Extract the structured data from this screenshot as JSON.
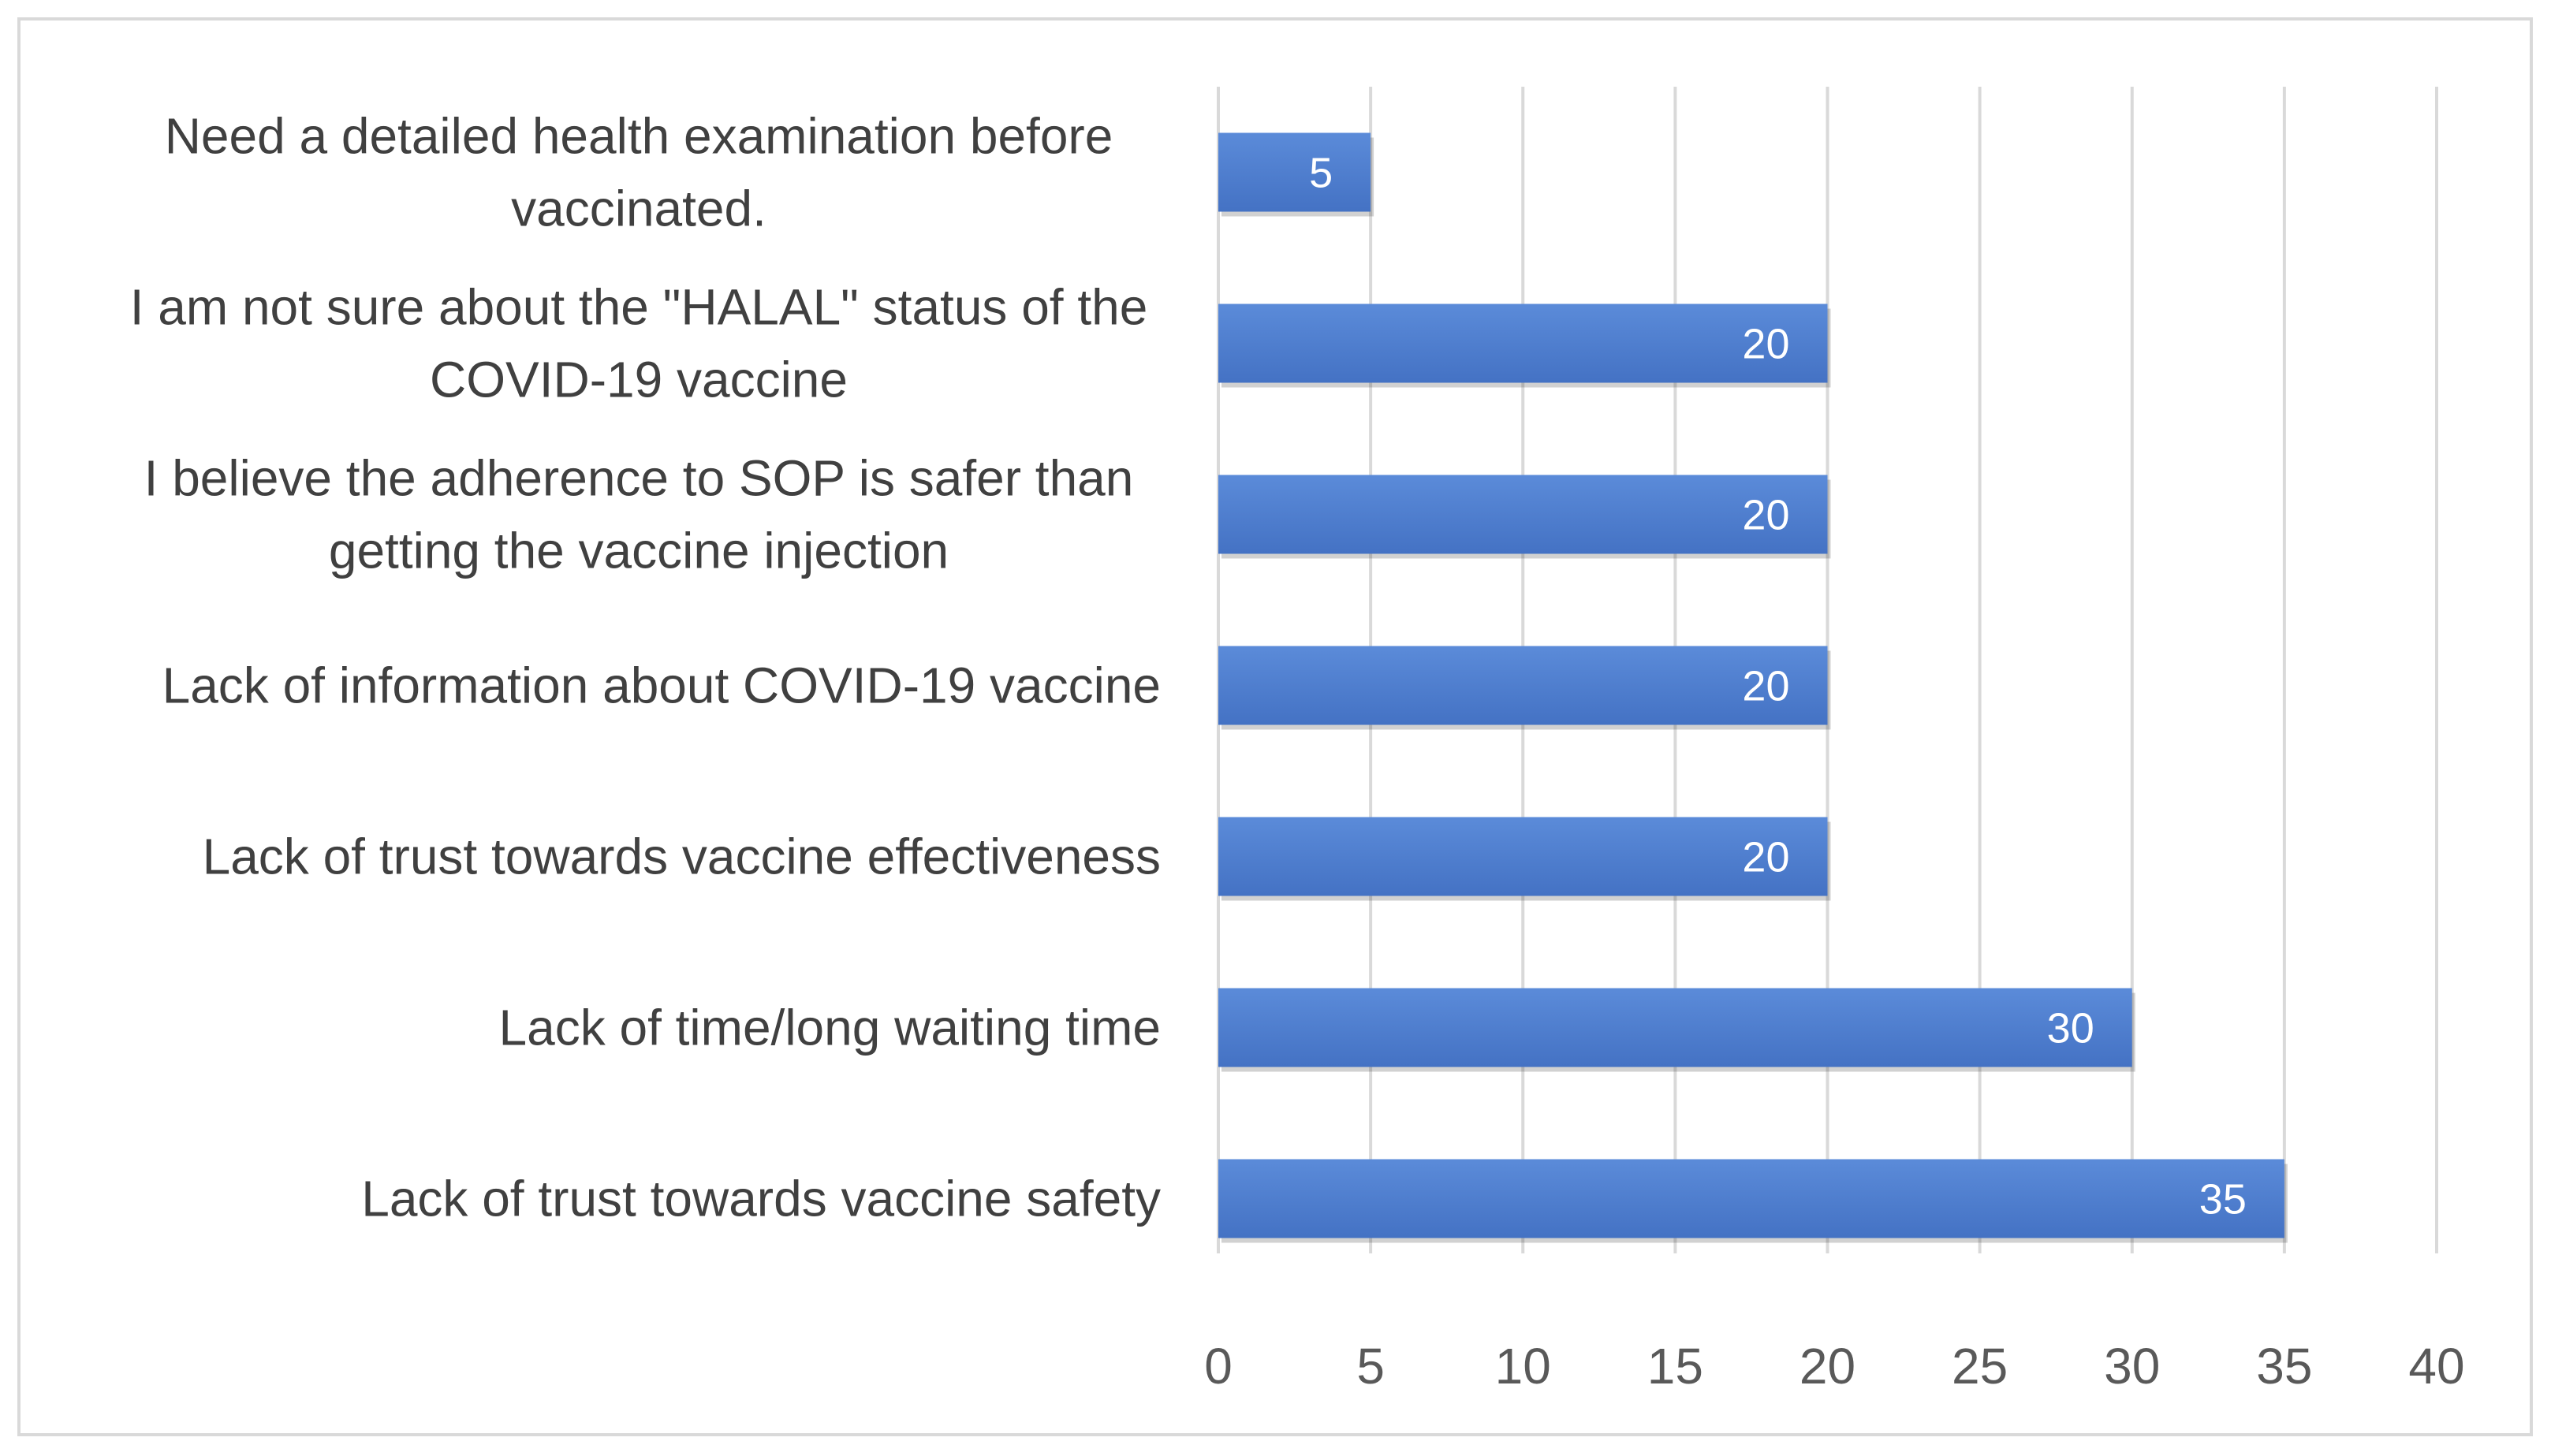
{
  "chart_data": {
    "type": "bar",
    "orientation": "horizontal",
    "title": "",
    "xlabel": "",
    "ylabel": "",
    "categories": [
      "Need a detailed health examination before vaccinated.",
      "I am not sure about the \"HALAL\" status of the COVID-19 vaccine",
      "I believe the adherence to SOP is safer than getting the vaccine injection",
      "Lack of information about COVID-19 vaccine",
      "Lack of trust towards vaccine effectiveness",
      "Lack of time/long waiting time",
      "Lack of trust towards vaccine safety"
    ],
    "category_lines": [
      [
        "Need a detailed health examination before",
        "vaccinated."
      ],
      [
        "I am not sure about the \"HALAL\" status of the",
        "COVID-19 vaccine"
      ],
      [
        "I believe the adherence to SOP is safer than",
        "getting the vaccine injection"
      ],
      [
        "Lack of information about COVID-19 vaccine"
      ],
      [
        "Lack of trust towards vaccine effectiveness"
      ],
      [
        "Lack of time/long waiting time"
      ],
      [
        "Lack of trust towards vaccine safety"
      ]
    ],
    "values": [
      5,
      20,
      20,
      20,
      20,
      30,
      35
    ],
    "xlim": [
      0,
      40
    ],
    "ticks": [
      0,
      5,
      10,
      15,
      20,
      25,
      30,
      35,
      40
    ],
    "grid": true,
    "data_labels": true,
    "bar_color": "#4472c4",
    "bar_color_light": "#5b8bd9"
  }
}
